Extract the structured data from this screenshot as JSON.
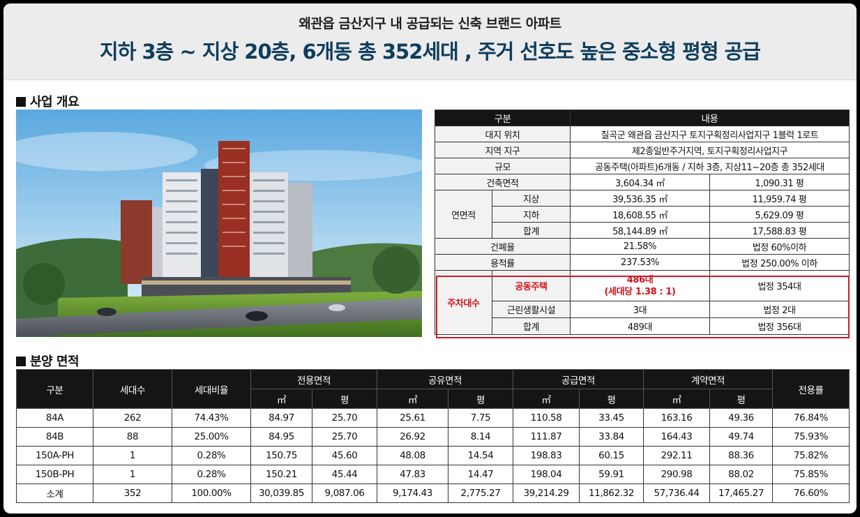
{
  "banner": {
    "subtitle": "왜관읍 금산지구 내 공급되는 신축 브랜드 아파트",
    "title": "지하 3층 ~ 지상 20층, 6개동 총 352세대 , 주거 선호도 높은 중소형 평형 공급"
  },
  "overview": {
    "section_title": "사업 개요",
    "header": {
      "category": "구분",
      "content": "내용"
    },
    "site_location": {
      "label": "대지 위치",
      "value": "칠곡군 왜관읍 금산지구 토지구획정리사업지구 1블럭 1로트"
    },
    "zoning": {
      "label": "지역 지구",
      "value": "제2종일반주거지역, 토지구획정리사업지구"
    },
    "scale": {
      "label": "규모",
      "value": "공동주택(아파트)6개동 / 지하 3층, 지상11~20층 총 352세대"
    },
    "building_area": {
      "label": "건축면적",
      "sqm": "3,604.34 ㎡",
      "pyeong": "1,090.31 평"
    },
    "gross_floor_area": {
      "label": "연면적",
      "rows": [
        {
          "label": "지상",
          "sqm": "39,536.35 ㎡",
          "pyeong": "11,959.74 평"
        },
        {
          "label": "지하",
          "sqm": "18,608.55 ㎡",
          "pyeong": "5,629.09 평"
        },
        {
          "label": "합계",
          "sqm": "58,144.89 ㎡",
          "pyeong": "17,588.83 평"
        }
      ]
    },
    "coverage_ratio": {
      "label": "건폐율",
      "value": "21.58%",
      "legal": "법정 60%이하"
    },
    "floor_area_ratio": {
      "label": "용적률",
      "value": "237.53%",
      "legal": "법정 250.00% 이하"
    },
    "parking": {
      "label": "주차대수",
      "rows": [
        {
          "label": "공동주택",
          "value_line1": "486대",
          "value_line2": "(세대당 1.38 : 1)",
          "legal": "법정 354대"
        },
        {
          "label": "근린생활시설",
          "value": "3대",
          "legal": "법정 2대"
        },
        {
          "label": "합계",
          "value": "489대",
          "legal": "법정 356대"
        }
      ]
    }
  },
  "area": {
    "section_title": "분양 면적",
    "headers": {
      "category": "구분",
      "households": "세대수",
      "ratio": "세대비율",
      "exclusive": "전용면적",
      "shared": "공유면적",
      "supply": "공급면적",
      "contract": "계약면적",
      "efficiency": "전용률",
      "sqm": "㎡",
      "pyeong": "평"
    },
    "rows": [
      {
        "type": "84A",
        "households": "262",
        "ratio": "74.43%",
        "ex_sqm": "84.97",
        "ex_py": "25.70",
        "sh_sqm": "25.61",
        "sh_py": "7.75",
        "su_sqm": "110.58",
        "su_py": "33.45",
        "co_sqm": "163.16",
        "co_py": "49.36",
        "eff": "76.84%"
      },
      {
        "type": "84B",
        "households": "88",
        "ratio": "25.00%",
        "ex_sqm": "84.95",
        "ex_py": "25.70",
        "sh_sqm": "26.92",
        "sh_py": "8.14",
        "su_sqm": "111.87",
        "su_py": "33.84",
        "co_sqm": "164.43",
        "co_py": "49.74",
        "eff": "75.93%"
      },
      {
        "type": "150A-PH",
        "households": "1",
        "ratio": "0.28%",
        "ex_sqm": "150.75",
        "ex_py": "45.60",
        "sh_sqm": "48.08",
        "sh_py": "14.54",
        "su_sqm": "198.83",
        "su_py": "60.15",
        "co_sqm": "292.11",
        "co_py": "88.36",
        "eff": "75.82%"
      },
      {
        "type": "150B-PH",
        "households": "1",
        "ratio": "0.28%",
        "ex_sqm": "150.21",
        "ex_py": "45.44",
        "sh_sqm": "47.83",
        "sh_py": "14.47",
        "su_sqm": "198.04",
        "su_py": "59.91",
        "co_sqm": "290.98",
        "co_py": "88.02",
        "eff": "75.85%"
      },
      {
        "type": "소계",
        "households": "352",
        "ratio": "100.00%",
        "ex_sqm": "30,039.85",
        "ex_py": "9,087.06",
        "sh_sqm": "9,174.43",
        "sh_py": "2,775.27",
        "su_sqm": "39,214.29",
        "su_py": "11,862.32",
        "co_sqm": "57,736.44",
        "co_py": "17,465.27",
        "eff": "76.60%"
      }
    ]
  }
}
